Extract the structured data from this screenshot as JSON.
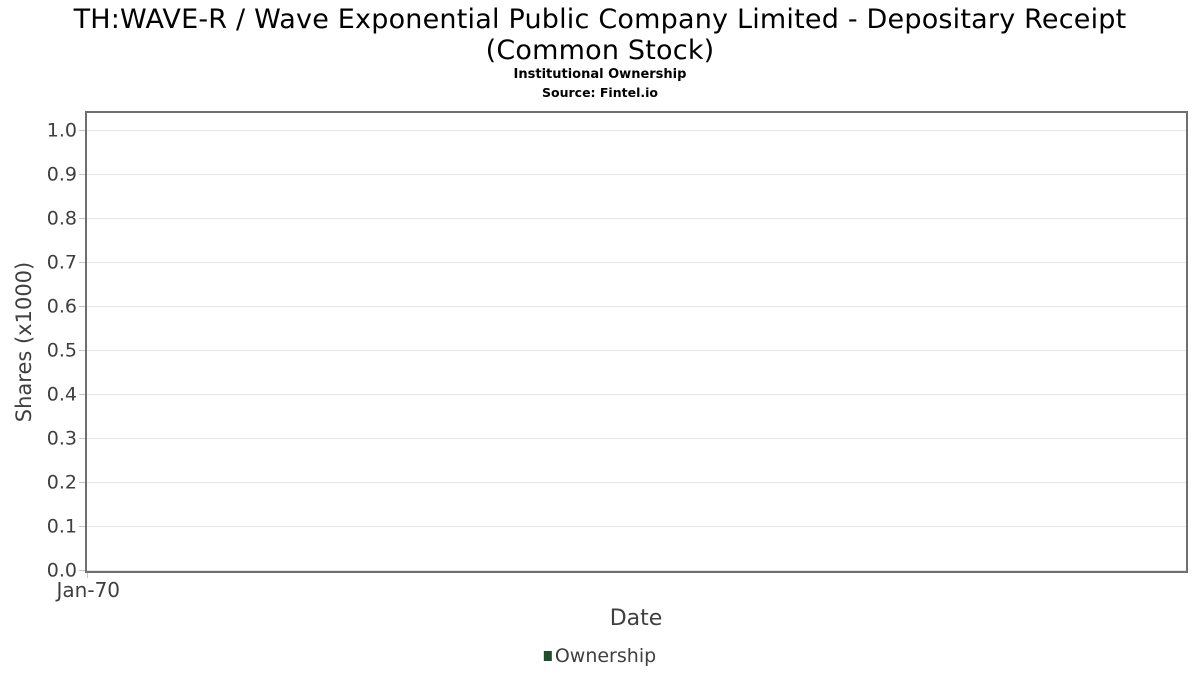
{
  "header": {
    "title_lines": [
      "TH:WAVE-R / Wave Exponential Public Company Limited - Depositary Receipt",
      "(Common Stock)"
    ],
    "subtitle": "Institutional Ownership",
    "source": "Source: Fintel.io"
  },
  "axes": {
    "y_label": "Shares (x1000)",
    "x_label": "Date"
  },
  "legend": {
    "items": [
      {
        "label": "Ownership",
        "color": "#1e5128"
      }
    ]
  },
  "colors": {
    "gridline": "#e6e6e6",
    "spine": "#6f6f6f",
    "tick_text": "#3f3f3f",
    "title_text": "#000000",
    "series_green": "#1e5128"
  },
  "chart_data": {
    "type": "line",
    "title": "TH:WAVE-R / Wave Exponential Public Company Limited - Depositary Receipt (Common Stock)",
    "subtitle": "Institutional Ownership",
    "source": "Source: Fintel.io",
    "xlabel": "Date",
    "ylabel": "Shares (x1000)",
    "x_tick_labels": [
      "Jan-70"
    ],
    "y_ticks": [
      0.0,
      0.1,
      0.2,
      0.3,
      0.4,
      0.5,
      0.6,
      0.7,
      0.8,
      0.9,
      1.0
    ],
    "ylim": [
      0,
      1.04
    ],
    "grid": true,
    "legend_position": "bottom-center",
    "series": [
      {
        "name": "Ownership",
        "color": "#1e5128",
        "x": [],
        "values": []
      }
    ]
  }
}
